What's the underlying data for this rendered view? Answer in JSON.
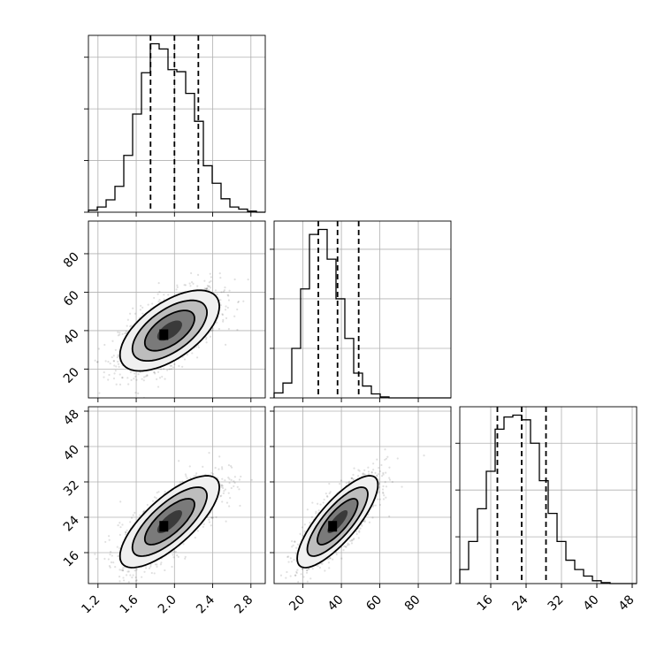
{
  "chart_data": {
    "type": "corner",
    "grid": true,
    "parameters": [
      {
        "ticks": [
          "1.2",
          "1.6",
          "2.0",
          "2.4",
          "2.8"
        ],
        "tick_values": [
          1.2,
          1.6,
          2.0,
          2.4,
          2.8
        ],
        "range": [
          1.1,
          2.95
        ],
        "quantiles": [
          1.75,
          2.0,
          2.25
        ]
      },
      {
        "ticks": [
          "20",
          "40",
          "60",
          "80"
        ],
        "tick_values": [
          20,
          40,
          60,
          80
        ],
        "range": [
          5,
          97
        ],
        "quantiles": [
          28,
          38,
          49
        ]
      },
      {
        "ticks": [
          "16",
          "24",
          "32",
          "40",
          "48"
        ],
        "tick_values": [
          16,
          24,
          32,
          40,
          48
        ],
        "range": [
          9,
          49
        ],
        "quantiles": [
          17.5,
          23,
          28.5
        ]
      }
    ],
    "histograms": [
      {
        "edges": [
          1.1,
          1.1925,
          1.285,
          1.3775,
          1.47,
          1.5625,
          1.655,
          1.7475,
          1.84,
          1.9325,
          2.025,
          2.1175,
          2.21,
          2.3025,
          2.395,
          2.4875,
          2.58,
          2.6725,
          2.765,
          2.8575,
          2.95
        ],
        "counts": [
          2,
          5,
          12,
          25,
          55,
          95,
          135,
          163,
          158,
          138,
          136,
          115,
          88,
          45,
          28,
          13,
          5,
          3,
          1,
          0
        ]
      },
      {
        "edges": [
          5,
          9.6,
          14.2,
          18.8,
          23.4,
          28,
          32.6,
          37.2,
          41.8,
          46.4,
          51,
          55.6,
          60.2,
          64.8,
          69.4,
          74,
          78.6,
          83.2,
          87.8,
          92.4,
          97
        ],
        "counts": [
          5,
          15,
          50,
          110,
          165,
          170,
          140,
          100,
          60,
          25,
          12,
          4,
          1,
          0,
          0,
          0,
          0,
          0,
          0,
          0
        ]
      },
      {
        "edges": [
          9,
          11,
          13,
          15,
          17,
          19,
          21,
          23,
          25,
          27,
          29,
          31,
          33,
          35,
          37,
          39,
          41,
          43,
          45,
          47,
          49
        ],
        "counts": [
          15,
          45,
          80,
          120,
          165,
          178,
          180,
          175,
          150,
          110,
          75,
          45,
          25,
          15,
          8,
          3,
          1,
          0,
          0,
          0
        ]
      }
    ],
    "joint": [
      {
        "x": 1,
        "y": 0,
        "center": [
          1.95,
          40
        ],
        "sx": 0.26,
        "sy": 10.5,
        "rho": 0.6
      },
      {
        "x": 2,
        "y": 0,
        "center": [
          1.95,
          23
        ],
        "sx": 0.26,
        "sy": 5.2,
        "rho": 0.75
      },
      {
        "x": 2,
        "y": 1,
        "center": [
          38,
          23
        ],
        "sx": 10.5,
        "sy": 5.2,
        "rho": 0.8
      }
    ]
  }
}
